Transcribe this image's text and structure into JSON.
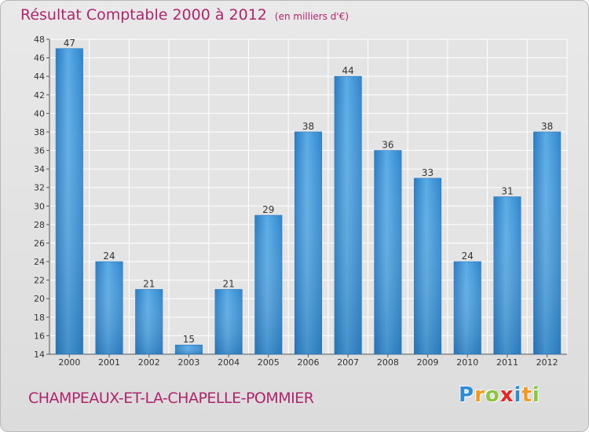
{
  "title": "Résultat Comptable 2000 à 2012",
  "unit_note": "(en milliers d'€)",
  "commune": "CHAMPEAUX-ET-LA-CHAPELLE-POMMIER",
  "logo": {
    "letters": [
      "P",
      "r",
      "o",
      "x",
      "i",
      "t",
      "i"
    ],
    "colors": [
      "#2f8dd6",
      "#f39a1e",
      "#8cc63f",
      "#e8251e",
      "#2f8dd6",
      "#f39a1e",
      "#8cc63f"
    ]
  },
  "colors": {
    "bar": "#3b8fd3",
    "bar_light": "#6bb4ea",
    "accent": "#b0246d"
  },
  "chart_data": {
    "type": "bar",
    "categories": [
      "2000",
      "2001",
      "2002",
      "2003",
      "2004",
      "2005",
      "2006",
      "2007",
      "2008",
      "2009",
      "2010",
      "2011",
      "2012"
    ],
    "values": [
      47,
      24,
      21,
      15,
      21,
      29,
      38,
      44,
      36,
      33,
      24,
      31,
      38
    ],
    "title": "Résultat Comptable 2000 à 2012",
    "xlabel": "",
    "ylabel": "",
    "ylim": [
      14,
      48
    ],
    "yticks": [
      14,
      16,
      18,
      20,
      22,
      24,
      26,
      28,
      30,
      32,
      34,
      36,
      38,
      40,
      42,
      44,
      46,
      48
    ],
    "grid": true,
    "data_labels": true
  }
}
